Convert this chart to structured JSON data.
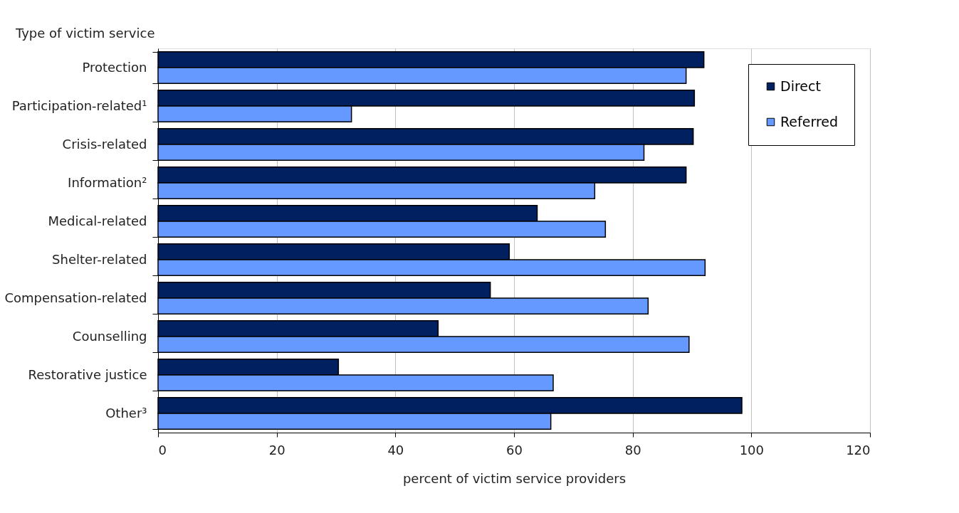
{
  "chart_data": {
    "type": "bar",
    "orientation": "horizontal",
    "ylabel": "Type of victim service",
    "xlabel": "percent of victim service providers",
    "categories": [
      "Protection",
      "Participation-related¹",
      "Crisis-related",
      "Information²",
      "Medical-related",
      "Shelter-related",
      "Compensation-related",
      "Counselling",
      "Restorative justice",
      "Other³"
    ],
    "series": [
      {
        "name": "Direct",
        "color": "#002060",
        "values": [
          92.0,
          90.4,
          90.2,
          89.0,
          63.9,
          59.2,
          56.0,
          47.2,
          30.4,
          98.4
        ]
      },
      {
        "name": "Referred",
        "color": "#6699ff",
        "values": [
          89.0,
          32.6,
          81.9,
          73.6,
          75.4,
          92.2,
          82.6,
          89.5,
          66.6,
          66.2
        ]
      }
    ],
    "xlim": [
      0,
      120
    ],
    "xticks": [
      0,
      20,
      40,
      60,
      80,
      100,
      120
    ],
    "grid": "x",
    "legend": "top right"
  }
}
